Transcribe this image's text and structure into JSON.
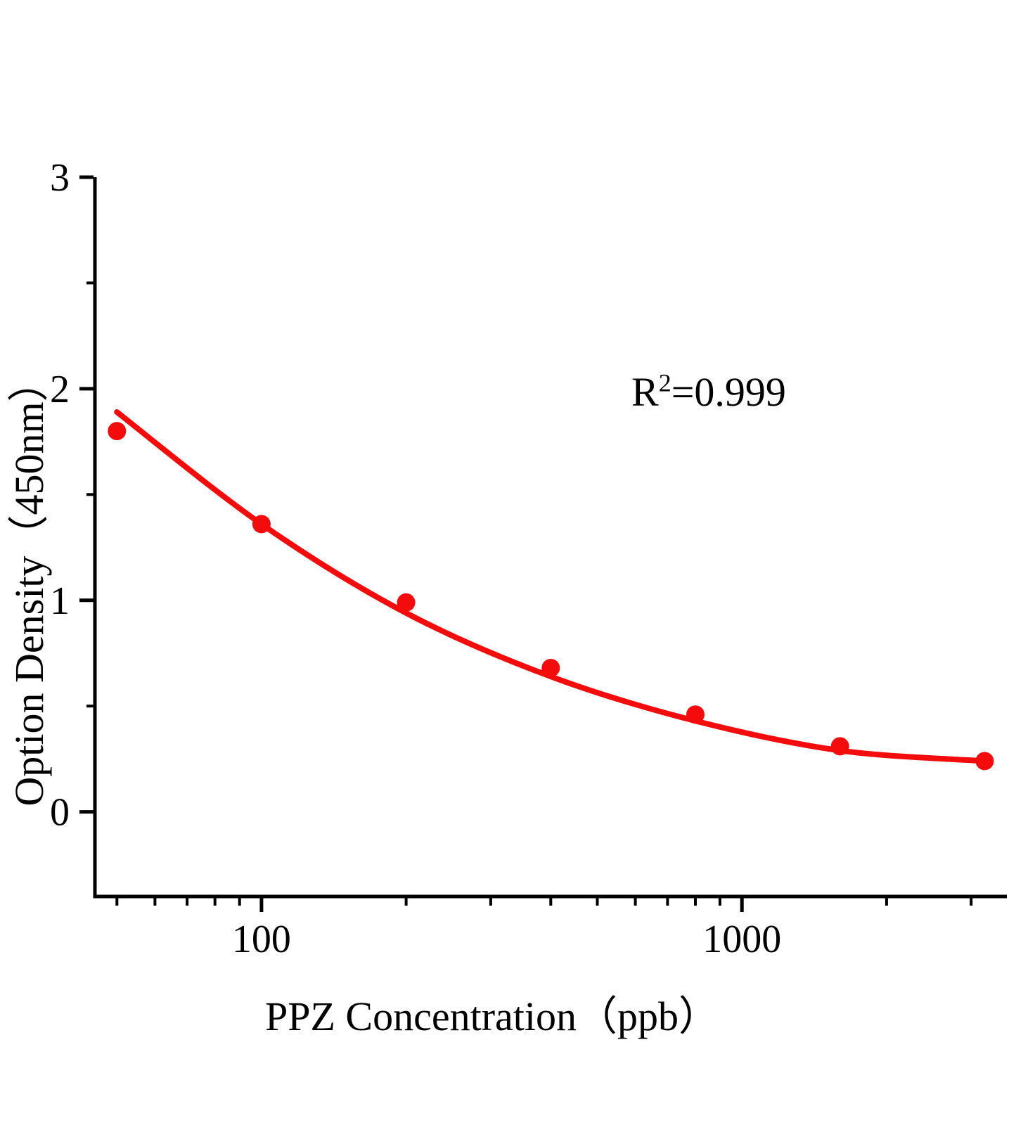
{
  "figure": {
    "background": "#ffffff",
    "text_color": "#000000"
  },
  "chart_data": {
    "type": "scatter",
    "title": "",
    "xlabel": "PPZ  Concentration（ppb）",
    "ylabel": "Option Density（450nm）",
    "annotation": {
      "base": "R",
      "sup": "2",
      "rest": "=0.999"
    },
    "grid": false,
    "legend": false,
    "x_scale": "log",
    "xlim": [
      45,
      3560
    ],
    "ylim": [
      -0.4,
      3.0
    ],
    "x_axis": {
      "major_ticks": [
        100,
        1000
      ],
      "tick_labels": [
        "100",
        "1000"
      ],
      "minor_ticks": [
        50,
        60,
        70,
        80,
        90,
        200,
        300,
        400,
        500,
        600,
        700,
        800,
        900,
        2000,
        3000
      ]
    },
    "y_axis": {
      "major_ticks": [
        0,
        1,
        2,
        3
      ],
      "tick_labels": [
        "0",
        "1",
        "2",
        "3"
      ],
      "minor_ticks": [
        0.5,
        1.5,
        2.5
      ]
    },
    "colors": {
      "points": "#f40b0b",
      "curve": "#f40b0b",
      "axis": "#000000"
    },
    "series": [
      {
        "name": "standard-points",
        "type": "scatter",
        "color": "#f40b0b",
        "x": [
          50,
          100,
          200,
          400,
          800,
          1600,
          3200
        ],
        "y": [
          1.8,
          1.36,
          0.99,
          0.68,
          0.46,
          0.31,
          0.24
        ]
      },
      {
        "name": "fit-curve",
        "type": "line",
        "color": "#f40b0b",
        "x": [
          50,
          100,
          200,
          400,
          800,
          1600,
          3200
        ],
        "y": [
          1.89,
          1.36,
          0.94,
          0.64,
          0.43,
          0.29,
          0.24
        ]
      }
    ]
  }
}
